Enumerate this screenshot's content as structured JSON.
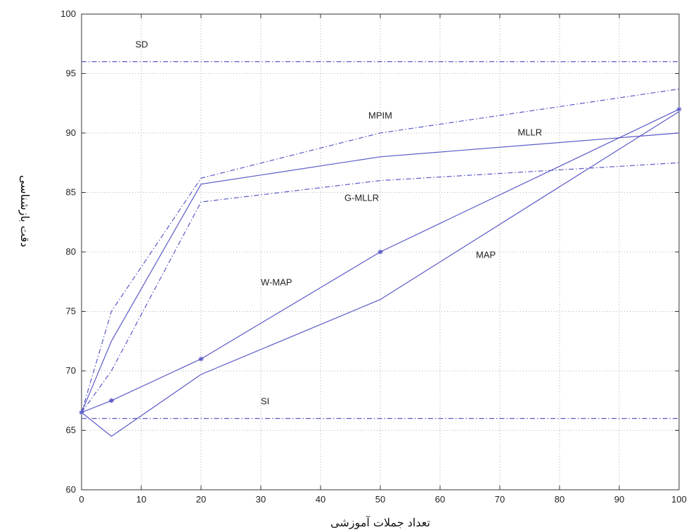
{
  "chart_data": {
    "type": "line",
    "xlabel": "تعداد جملات آموزشی",
    "ylabel": "دقت بازشناسی",
    "xlim": [
      0,
      100
    ],
    "ylim": [
      60,
      100
    ],
    "xticks": [
      "0",
      "10",
      "20",
      "30",
      "40",
      "50",
      "60",
      "70",
      "80",
      "90",
      "100"
    ],
    "yticks": [
      "60",
      "65",
      "70",
      "75",
      "80",
      "85",
      "90",
      "95",
      "100"
    ],
    "grid": true,
    "line_color": "#5a5ac8",
    "series": [
      {
        "name": "SD",
        "style": "dashdot",
        "marker": "none",
        "x": [
          0,
          100
        ],
        "y": [
          96,
          96
        ]
      },
      {
        "name": "SI",
        "style": "dashdot",
        "marker": "none",
        "x": [
          0,
          100
        ],
        "y": [
          66,
          66
        ]
      },
      {
        "name": "MPIM",
        "style": "dashdot",
        "marker": "none",
        "x": [
          0,
          5,
          20,
          50,
          100
        ],
        "y": [
          66.5,
          75,
          86.2,
          90,
          93.7
        ]
      },
      {
        "name": "MLLR",
        "style": "solid",
        "marker": "none",
        "x": [
          0,
          5,
          20,
          50,
          100
        ],
        "y": [
          66.5,
          72.5,
          85.7,
          88,
          90
        ]
      },
      {
        "name": "G-MLLR",
        "style": "dashdot",
        "marker": "none",
        "x": [
          0,
          5,
          20,
          50,
          100
        ],
        "y": [
          66.5,
          70,
          84.2,
          86,
          87.5
        ]
      },
      {
        "name": "W-MAP",
        "style": "solid",
        "marker": "star",
        "x": [
          0,
          5,
          20,
          50,
          100
        ],
        "y": [
          66.5,
          67.5,
          71,
          80,
          92
        ]
      },
      {
        "name": "MAP",
        "style": "solid",
        "marker": "none",
        "x": [
          0,
          5,
          20,
          50,
          100
        ],
        "y": [
          66.5,
          64.5,
          69.7,
          76,
          91.8
        ]
      }
    ],
    "annotations": [
      {
        "text": "SD",
        "x": 9,
        "y": 97.2
      },
      {
        "text": "MPIM",
        "x": 48,
        "y": 91.2
      },
      {
        "text": "MLLR",
        "x": 73,
        "y": 89.8
      },
      {
        "text": "G-MLLR",
        "x": 44,
        "y": 84.3
      },
      {
        "text": "W-MAP",
        "x": 30,
        "y": 77.2
      },
      {
        "text": "MAP",
        "x": 66,
        "y": 79.5
      },
      {
        "text": "SI",
        "x": 30,
        "y": 67.2
      }
    ]
  }
}
